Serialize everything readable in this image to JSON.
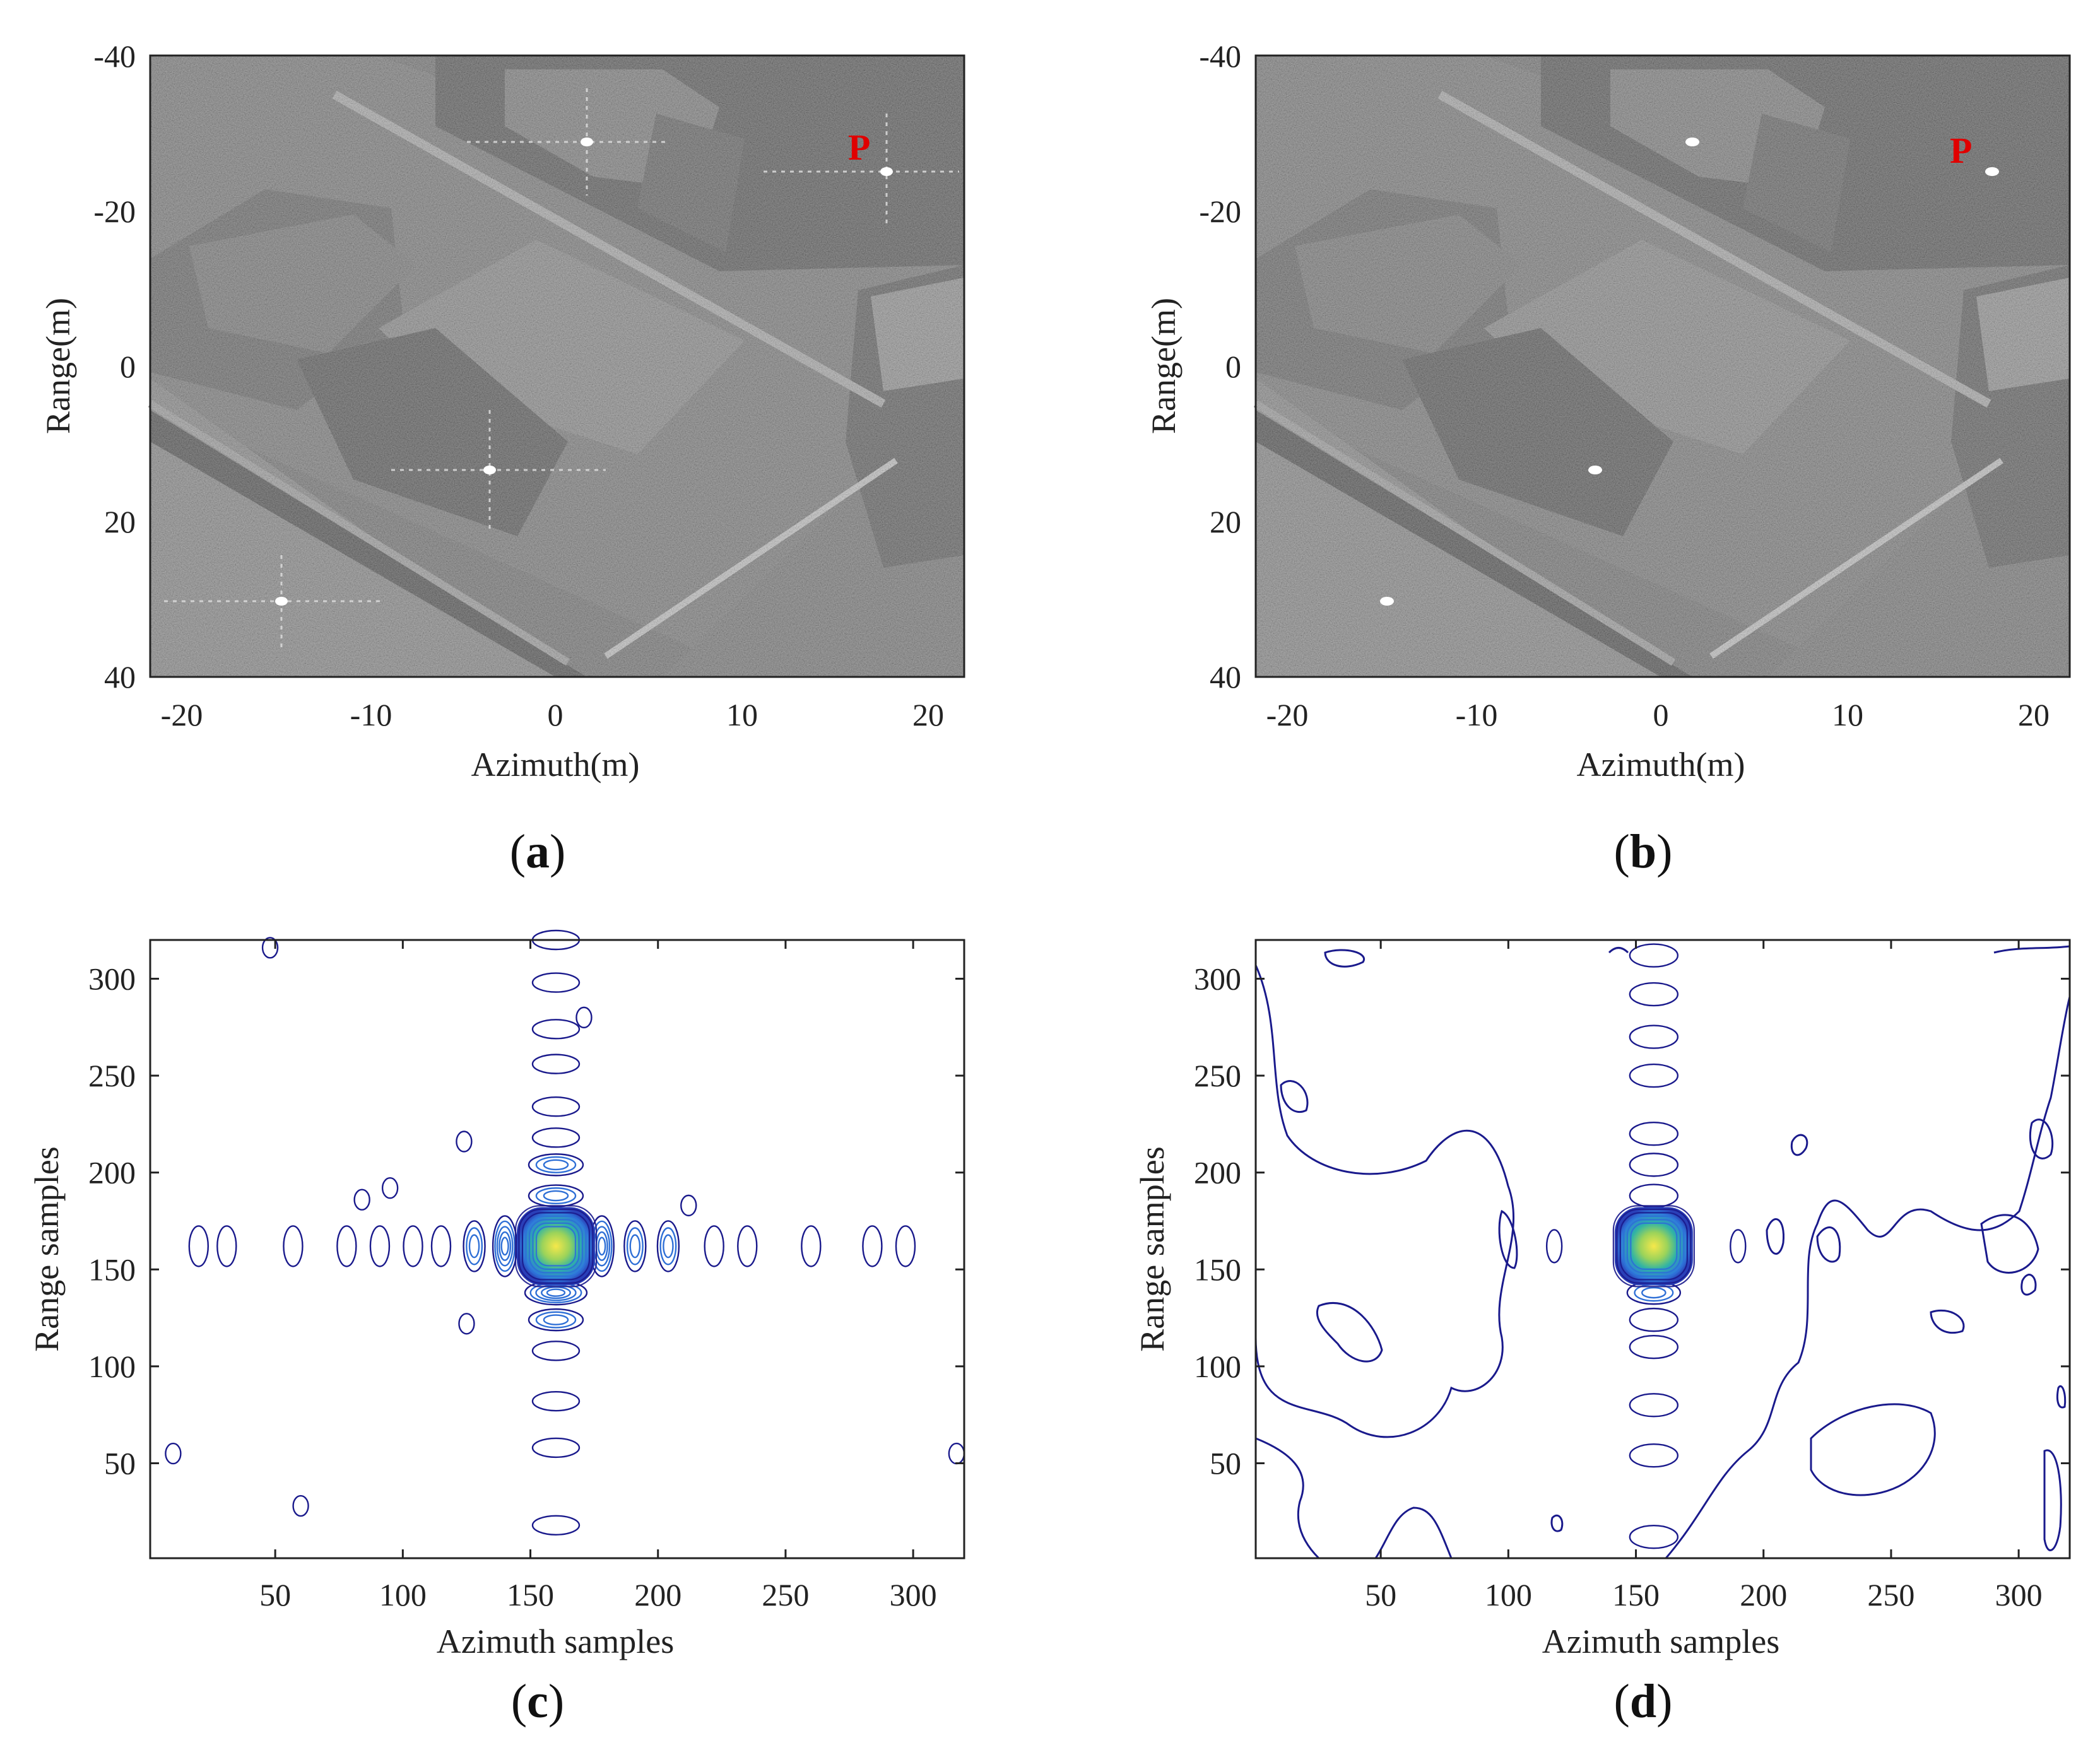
{
  "panels": [
    {
      "id": "a",
      "label_open": "(",
      "label_letter": "a",
      "label_close": ")",
      "xlabel": "Azimuth(m)",
      "ylabel": "Range(m)",
      "xticks": [
        "-20",
        "-10",
        "0",
        "10",
        "20"
      ],
      "yticks": [
        "-40",
        "-20",
        "0",
        "20",
        "40"
      ],
      "annotation": "P",
      "image": "SAR image with sidelobe artifacts around bright point targets"
    },
    {
      "id": "b",
      "label_open": "(",
      "label_letter": "b",
      "label_close": ")",
      "xlabel": "Azimuth(m)",
      "ylabel": "Range(m)",
      "xticks": [
        "-20",
        "-10",
        "0",
        "10",
        "20"
      ],
      "yticks": [
        "-40",
        "-20",
        "0",
        "20",
        "40"
      ],
      "annotation": "P",
      "image": "SAR image with suppressed sidelobes"
    },
    {
      "id": "c",
      "label_open": "(",
      "label_letter": "c",
      "label_close": ")",
      "xlabel": "Azimuth samples",
      "ylabel": "Range samples",
      "xticks": [
        "50",
        "100",
        "150",
        "200",
        "250",
        "300"
      ],
      "yticks": [
        "50",
        "100",
        "150",
        "200",
        "250",
        "300"
      ]
    },
    {
      "id": "d",
      "label_open": "(",
      "label_letter": "d",
      "label_close": ")",
      "xlabel": "Azimuth samples",
      "ylabel": "Range samples",
      "xticks": [
        "50",
        "100",
        "150",
        "200",
        "250",
        "300"
      ],
      "yticks": [
        "50",
        "100",
        "150",
        "200",
        "250",
        "300"
      ]
    }
  ],
  "chart_data": [
    {
      "panel": "c",
      "type": "contour",
      "title": "",
      "xlabel": "Azimuth samples",
      "ylabel": "Range samples",
      "xlim": [
        1,
        320
      ],
      "ylim": [
        1,
        320
      ],
      "peak": {
        "x": 160,
        "y": 162
      },
      "azimuth_sidelobes_x": [
        20,
        31,
        57,
        78,
        91,
        104,
        115,
        128,
        140,
        178,
        191,
        204,
        222,
        235,
        260,
        284,
        297
      ],
      "range_sidelobes_y": [
        18,
        58,
        82,
        108,
        124,
        138,
        188,
        204,
        218,
        234,
        256,
        274,
        298,
        320
      ],
      "isolated_blobs": [
        [
          10,
          55
        ],
        [
          60,
          28
        ],
        [
          95,
          192
        ],
        [
          84,
          186
        ],
        [
          48,
          316
        ],
        [
          317,
          55
        ],
        [
          125,
          122
        ],
        [
          124,
          216
        ],
        [
          212,
          183
        ],
        [
          171,
          280
        ]
      ]
    },
    {
      "panel": "d",
      "type": "contour",
      "title": "",
      "xlabel": "Azimuth samples",
      "ylabel": "Range samples",
      "xlim": [
        1,
        320
      ],
      "ylim": [
        1,
        320
      ],
      "peak": {
        "x": 157,
        "y": 162
      },
      "range_sidelobes_y": [
        12,
        54,
        80,
        110,
        124,
        138,
        188,
        204,
        220,
        250,
        270,
        292,
        312
      ],
      "azimuth_sidelobes_x": [
        118,
        190
      ]
    }
  ],
  "colors": {
    "contour_outer": "#1a1a8c",
    "contour_mid": "#2e6fd6",
    "peak_core": "#f4e04d",
    "annotation_p": "#e00000"
  }
}
